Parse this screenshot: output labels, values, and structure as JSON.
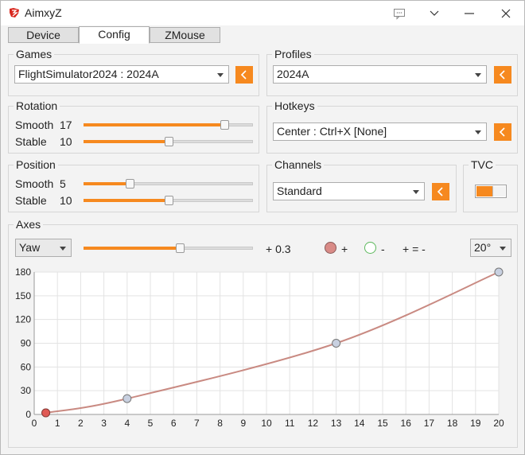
{
  "app": {
    "title": "AimxyZ",
    "icon": "app-logo-icon"
  },
  "titlebar_buttons": [
    "feedback-icon",
    "chevron-down-icon",
    "minimize-icon",
    "close-icon"
  ],
  "tabs": [
    {
      "label": "Device",
      "active": false
    },
    {
      "label": "Config",
      "active": true
    },
    {
      "label": "ZMouse",
      "active": false
    }
  ],
  "games": {
    "title": "Games",
    "selected": "FlightSimulator2024 : 2024A"
  },
  "profiles": {
    "title": "Profiles",
    "selected": "2024A"
  },
  "rotation": {
    "title": "Rotation",
    "smooth": {
      "label": "Smooth",
      "value": "17",
      "level": 0.83
    },
    "stable": {
      "label": "Stable",
      "value": "10",
      "level": 0.5
    }
  },
  "hotkeys": {
    "title": "Hotkeys",
    "selected": "Center : Ctrl+X [None]"
  },
  "position": {
    "title": "Position",
    "smooth": {
      "label": "Smooth",
      "value": "5",
      "level": 0.27
    },
    "stable": {
      "label": "Stable",
      "value": "10",
      "level": 0.5
    }
  },
  "channels": {
    "title": "Channels",
    "selected": "Standard"
  },
  "tvc": {
    "title": "TVC",
    "enabled": true
  },
  "axes": {
    "title": "Axes",
    "axis_selected": "Yaw",
    "slider": {
      "value": "+ 0.3",
      "level": 0.57
    },
    "legend": {
      "plus": "+",
      "minus": "-",
      "equal": "+ = -"
    },
    "angle_selected": "20°",
    "colors": {
      "curve": "#c98a82",
      "plus_fill": "#d98b87",
      "minus_ring": "#5cb85c",
      "point": "#c8d0e0"
    }
  },
  "chart_data": {
    "type": "line",
    "xlim": [
      0,
      20
    ],
    "ylim": [
      0,
      180
    ],
    "x_ticks": [
      "0",
      "1",
      "2",
      "3",
      "4",
      "5",
      "6",
      "7",
      "8",
      "9",
      "10",
      "11",
      "12",
      "13",
      "14",
      "15",
      "16",
      "17",
      "18",
      "19",
      "20"
    ],
    "y_ticks": [
      "0",
      "30",
      "60",
      "90",
      "120",
      "150",
      "180"
    ],
    "grid": true,
    "series": [
      {
        "points": [
          [
            0.5,
            2
          ],
          [
            4,
            20
          ],
          [
            13,
            90
          ],
          [
            20,
            180
          ]
        ]
      }
    ],
    "current_point": [
      0.5,
      2
    ]
  }
}
